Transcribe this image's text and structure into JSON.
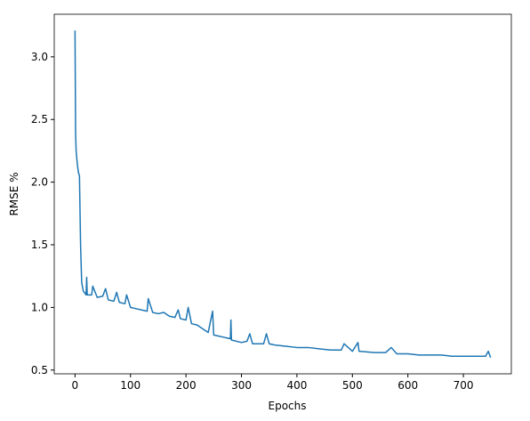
{
  "chart_data": {
    "type": "line",
    "xlabel": "Epochs",
    "ylabel": "RMSE %",
    "x": [
      0,
      1,
      2,
      4,
      6,
      8,
      10,
      12,
      15,
      20,
      21,
      22,
      30,
      32,
      40,
      50,
      55,
      60,
      70,
      75,
      80,
      90,
      93,
      100,
      110,
      120,
      130,
      132,
      140,
      150,
      160,
      170,
      180,
      186,
      190,
      200,
      204,
      210,
      220,
      230,
      240,
      248,
      250,
      260,
      270,
      280,
      281,
      282,
      300,
      310,
      315,
      320,
      340,
      345,
      350,
      360,
      380,
      400,
      420,
      440,
      460,
      480,
      485,
      500,
      510,
      512,
      540,
      560,
      570,
      580,
      600,
      620,
      640,
      660,
      680,
      700,
      720,
      740,
      745,
      749
    ],
    "series": [
      {
        "name": null,
        "color": "#1f77b4",
        "values": [
          3.21,
          2.4,
          2.25,
          2.15,
          2.08,
          2.05,
          1.5,
          1.2,
          1.13,
          1.1,
          1.24,
          1.1,
          1.1,
          1.17,
          1.08,
          1.09,
          1.15,
          1.06,
          1.05,
          1.12,
          1.04,
          1.03,
          1.1,
          1.0,
          0.99,
          0.98,
          0.97,
          1.07,
          0.96,
          0.95,
          0.96,
          0.93,
          0.92,
          0.98,
          0.91,
          0.9,
          1.0,
          0.87,
          0.86,
          0.83,
          0.8,
          0.97,
          0.78,
          0.77,
          0.76,
          0.75,
          0.9,
          0.74,
          0.72,
          0.73,
          0.79,
          0.71,
          0.71,
          0.79,
          0.71,
          0.7,
          0.69,
          0.68,
          0.68,
          0.67,
          0.66,
          0.66,
          0.71,
          0.65,
          0.72,
          0.65,
          0.64,
          0.64,
          0.68,
          0.63,
          0.63,
          0.62,
          0.62,
          0.62,
          0.61,
          0.61,
          0.61,
          0.61,
          0.65,
          0.6
        ]
      }
    ],
    "xlim": [
      -37.45,
      786.45
    ],
    "xticks": [
      0,
      100,
      200,
      300,
      400,
      500,
      600,
      700
    ],
    "ylim": [
      0.47,
      3.34
    ],
    "yticks": [
      {
        "value": 0.5,
        "label": "0.5"
      },
      {
        "value": 1.0,
        "label": "1.0"
      },
      {
        "value": 1.5,
        "label": "1.5"
      },
      {
        "value": 2.0,
        "label": "2.0"
      },
      {
        "value": 2.5,
        "label": "2.5"
      },
      {
        "value": 3.0,
        "label": "3.0"
      }
    ]
  }
}
